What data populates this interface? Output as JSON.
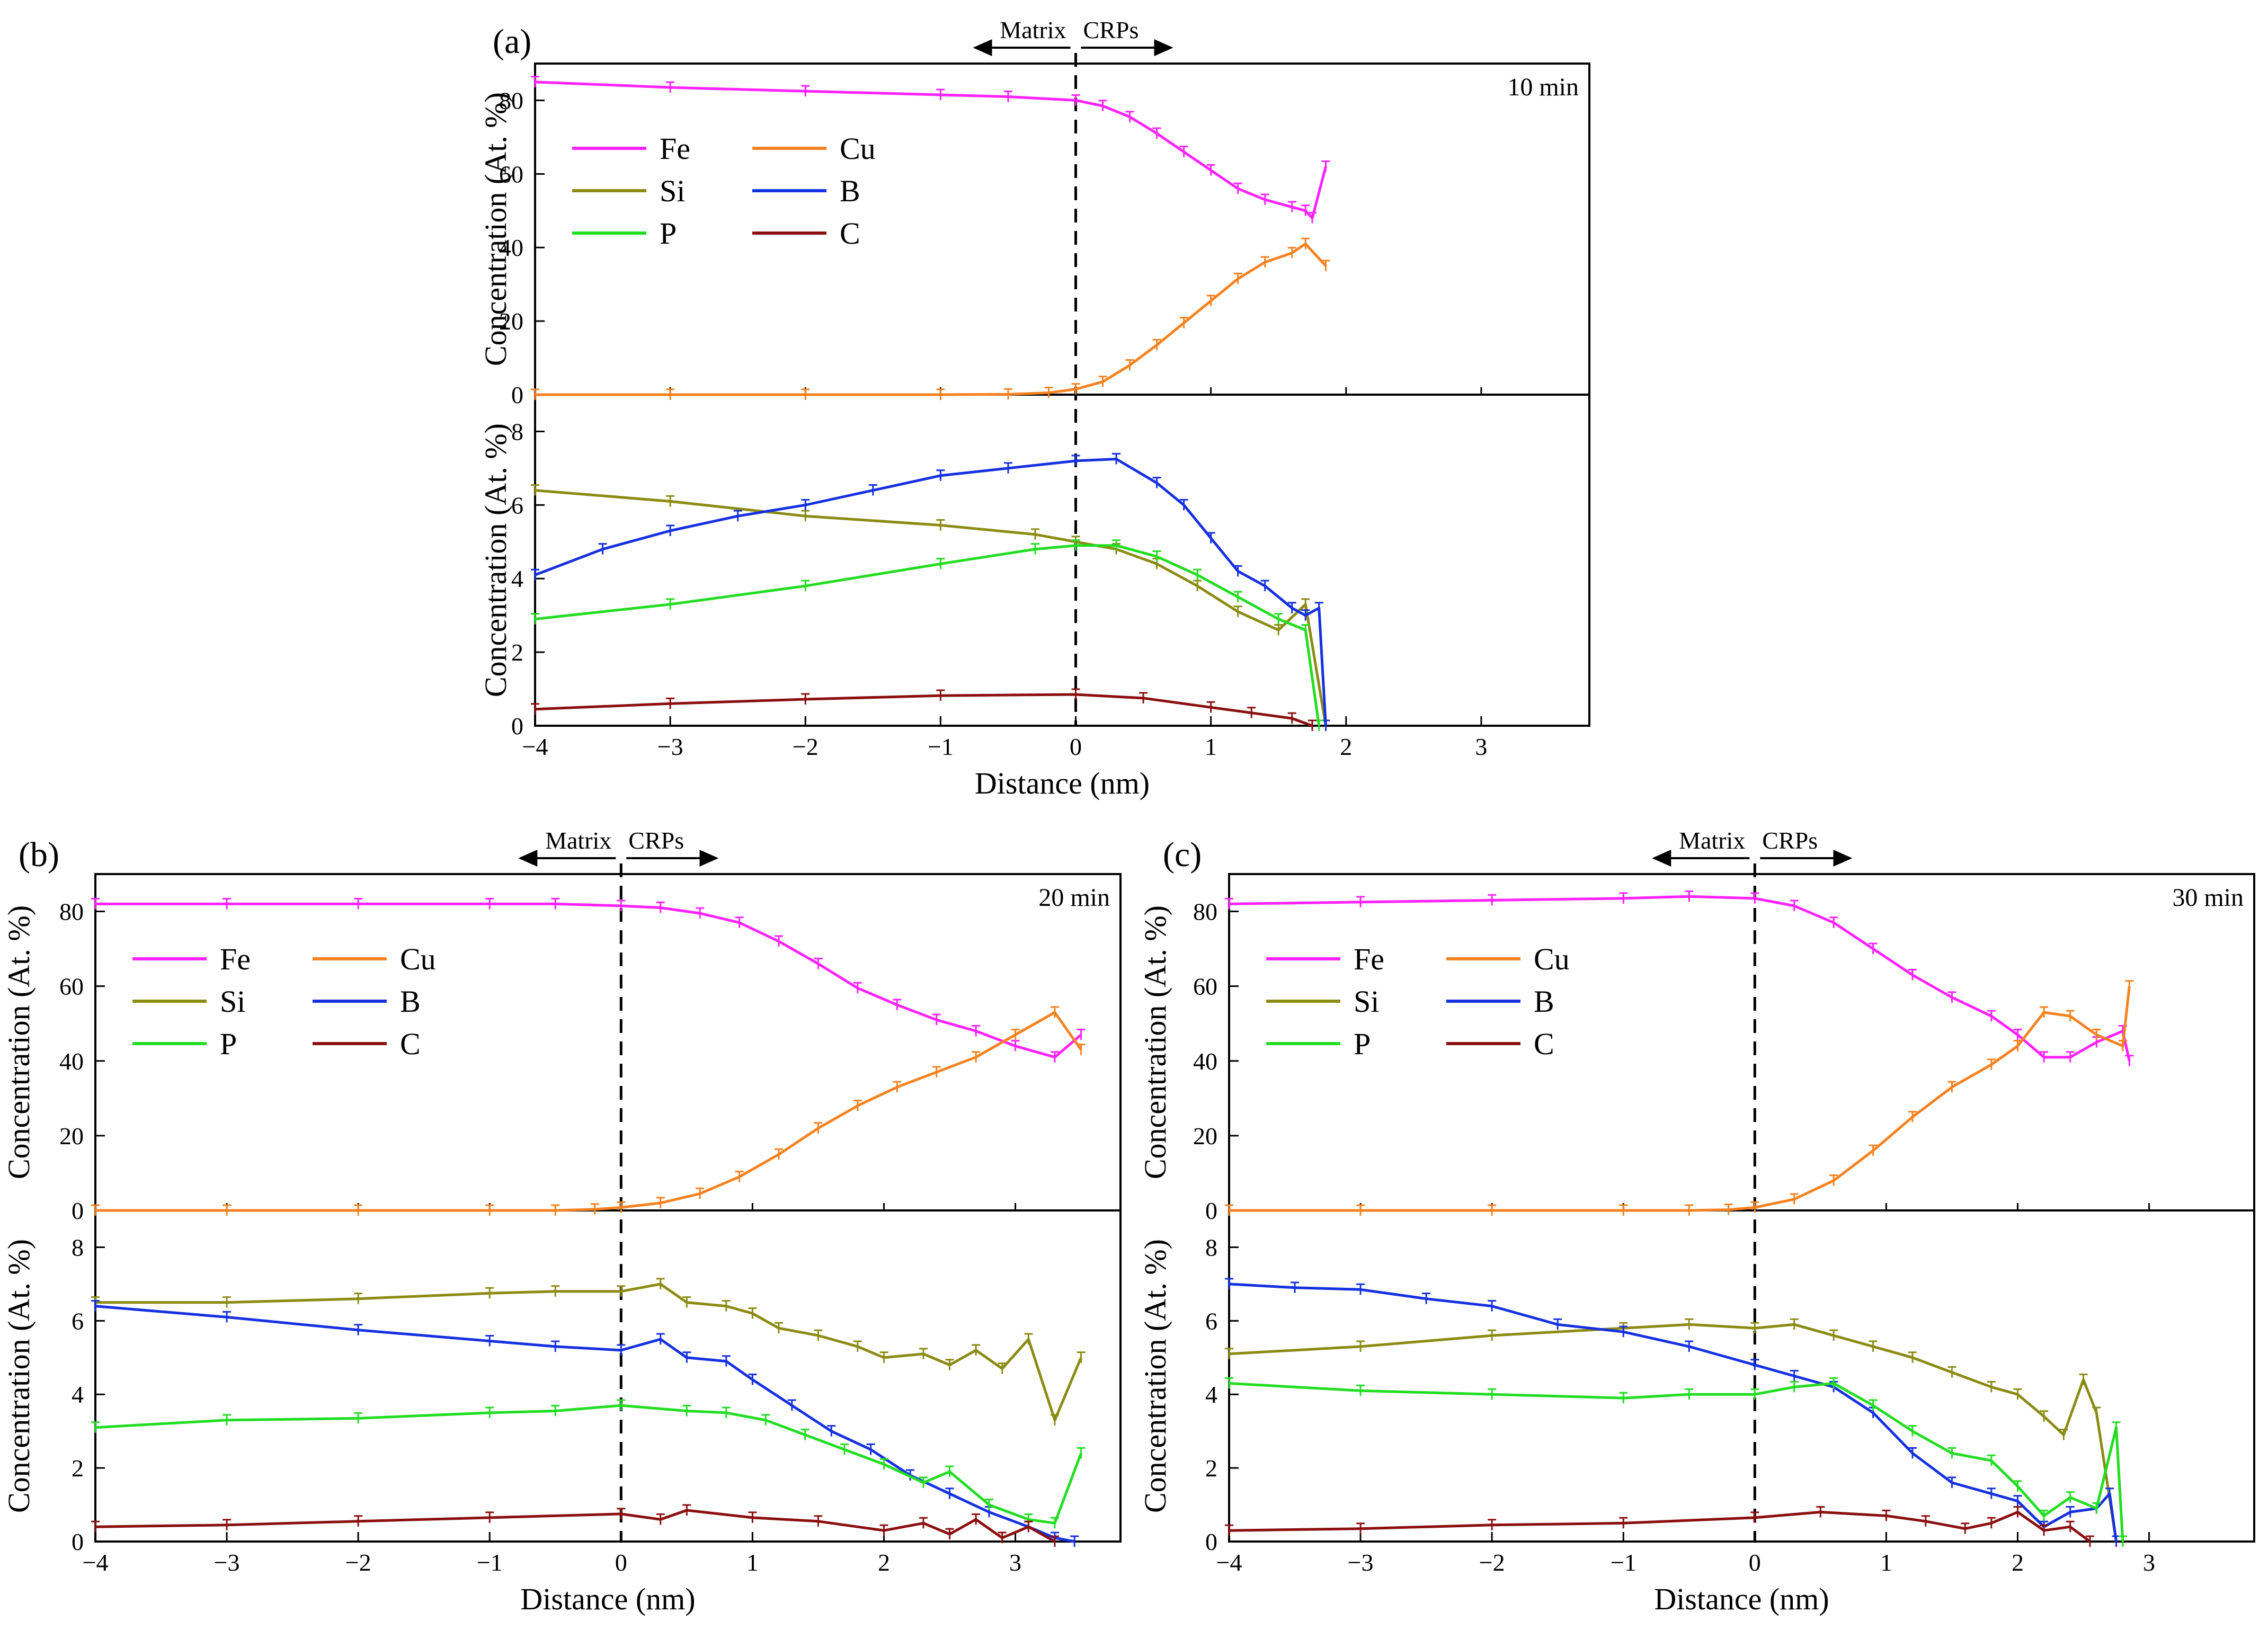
{
  "figure": {
    "colors": {
      "Fe": "#ff22ff",
      "Cu": "#f58220",
      "Si": "#8b8b14",
      "B": "#1530e0",
      "P": "#22dd22",
      "C": "#8b0f0f"
    },
    "legend_labels": [
      "Fe",
      "Cu",
      "Si",
      "B",
      "P",
      "C"
    ]
  },
  "chart_data": [
    {
      "panel_label": "(a)",
      "type": "line",
      "title": "10 min",
      "xlabel": "Distance (nm)",
      "ylabel": "Concentration (At. %)",
      "xlim": [
        -4,
        3.8
      ],
      "xticks": [
        -4,
        -3,
        -2,
        -1,
        0,
        1,
        2,
        3
      ],
      "xtick_labels": [
        "−4",
        "−3",
        "−2",
        "−1",
        "0",
        "1",
        "2",
        "3"
      ],
      "top": {
        "ylim": [
          0,
          90
        ],
        "yticks": [
          0,
          20,
          40,
          60,
          80
        ],
        "series": [
          {
            "name": "Fe",
            "x": [
              -4,
              -3,
              -2,
              -1,
              -0.5,
              0,
              0.2,
              0.4,
              0.6,
              0.8,
              1.0,
              1.2,
              1.4,
              1.6,
              1.7,
              1.75,
              1.85
            ],
            "y": [
              85,
              83.5,
              82.5,
              81.5,
              81,
              80,
              78.5,
              75.5,
              71,
              66,
              61,
              56,
              53,
              51,
              50,
              48,
              62
            ]
          },
          {
            "name": "Cu",
            "x": [
              -4,
              -3,
              -2,
              -1,
              -0.5,
              -0.2,
              0,
              0.2,
              0.4,
              0.6,
              0.8,
              1.0,
              1.2,
              1.4,
              1.6,
              1.7,
              1.85
            ],
            "y": [
              0,
              0,
              0,
              0,
              0.1,
              0.5,
              1.5,
              3.5,
              8,
              13.5,
              19.5,
              25.5,
              31.5,
              36,
              38.5,
              41,
              35
            ]
          }
        ]
      },
      "bottom": {
        "ylim": [
          0,
          9
        ],
        "yticks": [
          0,
          2,
          4,
          6,
          8
        ],
        "series": [
          {
            "name": "Si",
            "x": [
              -4,
              -3,
              -2,
              -1,
              -0.3,
              0,
              0.3,
              0.6,
              0.9,
              1.2,
              1.5,
              1.7,
              1.85
            ],
            "y": [
              6.4,
              6.1,
              5.7,
              5.45,
              5.2,
              5.0,
              4.8,
              4.4,
              3.8,
              3.1,
              2.6,
              3.3,
              0
            ]
          },
          {
            "name": "B",
            "x": [
              -4,
              -3.5,
              -3,
              -2.5,
              -2,
              -1.5,
              -1,
              -0.5,
              0,
              0.3,
              0.6,
              0.8,
              1.0,
              1.2,
              1.4,
              1.6,
              1.7,
              1.8,
              1.85
            ],
            "y": [
              4.1,
              4.8,
              5.3,
              5.7,
              6.0,
              6.4,
              6.8,
              7.0,
              7.2,
              7.25,
              6.6,
              6.0,
              5.1,
              4.2,
              3.8,
              3.2,
              3.0,
              3.2,
              0
            ]
          },
          {
            "name": "P",
            "x": [
              -4,
              -3,
              -2,
              -1,
              -0.3,
              0,
              0.3,
              0.6,
              0.9,
              1.2,
              1.5,
              1.7,
              1.8
            ],
            "y": [
              2.9,
              3.3,
              3.8,
              4.4,
              4.8,
              4.9,
              4.9,
              4.6,
              4.1,
              3.5,
              2.9,
              2.6,
              0
            ]
          },
          {
            "name": "C",
            "x": [
              -4,
              -3,
              -2,
              -1,
              0,
              0.5,
              1.0,
              1.3,
              1.6,
              1.75
            ],
            "y": [
              0.45,
              0.6,
              0.72,
              0.82,
              0.85,
              0.75,
              0.5,
              0.35,
              0.2,
              0
            ]
          }
        ]
      },
      "annotations": {
        "divider_x": 0,
        "left_label": "Matrix",
        "right_label": "CRPs"
      }
    },
    {
      "panel_label": "(b)",
      "type": "line",
      "title": "20 min",
      "xlabel": "Distance (nm)",
      "ylabel": "Concentration (At. %)",
      "xlim": [
        -4,
        3.8
      ],
      "xticks": [
        -4,
        -3,
        -2,
        -1,
        0,
        1,
        2,
        3
      ],
      "xtick_labels": [
        "−4",
        "−3",
        "−2",
        "−1",
        "0",
        "1",
        "2",
        "3"
      ],
      "top": {
        "ylim": [
          0,
          90
        ],
        "yticks": [
          0,
          20,
          40,
          60,
          80
        ],
        "series": [
          {
            "name": "Fe",
            "x": [
              -4,
              -3,
              -2,
              -1,
              -0.5,
              0,
              0.3,
              0.6,
              0.9,
              1.2,
              1.5,
              1.8,
              2.1,
              2.4,
              2.7,
              3.0,
              3.3,
              3.5
            ],
            "y": [
              82,
              82,
              82,
              82,
              82,
              81.5,
              81,
              79.5,
              77,
              72,
              66,
              59.5,
              55,
              51,
              48,
              44,
              41,
              47
            ]
          },
          {
            "name": "Cu",
            "x": [
              -4,
              -3,
              -2,
              -1,
              -0.5,
              -0.2,
              0,
              0.3,
              0.6,
              0.9,
              1.2,
              1.5,
              1.8,
              2.1,
              2.4,
              2.7,
              3.0,
              3.3,
              3.5
            ],
            "y": [
              0,
              0,
              0,
              0,
              0,
              0.3,
              0.8,
              2,
              4.5,
              9,
              15,
              22,
              28,
              33,
              37,
              41,
              47,
              53,
              43
            ]
          }
        ]
      },
      "bottom": {
        "ylim": [
          0,
          9
        ],
        "yticks": [
          0,
          2,
          4,
          6,
          8
        ],
        "series": [
          {
            "name": "Si",
            "x": [
              -4,
              -3,
              -2,
              -1,
              -0.5,
              0,
              0.3,
              0.5,
              0.8,
              1.0,
              1.2,
              1.5,
              1.8,
              2.0,
              2.3,
              2.5,
              2.7,
              2.9,
              3.1,
              3.3,
              3.5
            ],
            "y": [
              6.5,
              6.5,
              6.6,
              6.75,
              6.8,
              6.8,
              7.0,
              6.5,
              6.4,
              6.2,
              5.8,
              5.6,
              5.3,
              5.0,
              5.1,
              4.8,
              5.2,
              4.7,
              5.5,
              3.3,
              5.0
            ]
          },
          {
            "name": "B",
            "x": [
              -4,
              -3,
              -2,
              -1,
              -0.5,
              0,
              0.3,
              0.5,
              0.8,
              1.0,
              1.3,
              1.6,
              1.9,
              2.2,
              2.5,
              2.8,
              3.1,
              3.3,
              3.45
            ],
            "y": [
              6.4,
              6.1,
              5.75,
              5.45,
              5.3,
              5.2,
              5.5,
              5.0,
              4.9,
              4.4,
              3.7,
              3.0,
              2.5,
              1.8,
              1.3,
              0.8,
              0.4,
              0.1,
              0
            ]
          },
          {
            "name": "P",
            "x": [
              -4,
              -3,
              -2,
              -1,
              -0.5,
              0,
              0.5,
              0.8,
              1.1,
              1.4,
              1.7,
              2.0,
              2.3,
              2.5,
              2.8,
              3.1,
              3.3,
              3.5
            ],
            "y": [
              3.1,
              3.3,
              3.35,
              3.5,
              3.55,
              3.7,
              3.55,
              3.5,
              3.3,
              2.9,
              2.5,
              2.1,
              1.6,
              1.9,
              1.0,
              0.6,
              0.5,
              2.4
            ]
          },
          {
            "name": "C",
            "x": [
              -4,
              -3,
              -2,
              -1,
              0,
              0.3,
              0.5,
              1.0,
              1.5,
              2.0,
              2.3,
              2.5,
              2.7,
              2.9,
              3.1,
              3.3
            ],
            "y": [
              0.4,
              0.45,
              0.55,
              0.65,
              0.75,
              0.6,
              0.85,
              0.65,
              0.55,
              0.3,
              0.5,
              0.2,
              0.6,
              0.1,
              0.4,
              0
            ]
          }
        ]
      },
      "annotations": {
        "divider_x": 0,
        "left_label": "Matrix",
        "right_label": "CRPs"
      }
    },
    {
      "panel_label": "(c)",
      "type": "line",
      "title": "30 min",
      "xlabel": "Distance (nm)",
      "ylabel": "Concentration (At. %)",
      "xlim": [
        -4,
        3.8
      ],
      "xticks": [
        -4,
        -3,
        -2,
        -1,
        0,
        1,
        2,
        3
      ],
      "xtick_labels": [
        "−4",
        "−3",
        "−2",
        "−1",
        "0",
        "1",
        "2",
        "3"
      ],
      "top": {
        "ylim": [
          0,
          90
        ],
        "yticks": [
          0,
          20,
          40,
          60,
          80
        ],
        "series": [
          {
            "name": "Fe",
            "x": [
              -4,
              -3,
              -2,
              -1,
              -0.5,
              0,
              0.3,
              0.6,
              0.9,
              1.2,
              1.5,
              1.8,
              2.0,
              2.2,
              2.4,
              2.6,
              2.8,
              2.85
            ],
            "y": [
              82,
              82.5,
              83,
              83.5,
              84,
              83.5,
              81.5,
              77,
              70,
              63,
              57,
              52,
              47,
              41,
              41,
              45,
              48,
              40
            ]
          },
          {
            "name": "Cu",
            "x": [
              -4,
              -3,
              -2,
              -1,
              -0.5,
              -0.2,
              0,
              0.3,
              0.6,
              0.9,
              1.2,
              1.5,
              1.8,
              2.0,
              2.2,
              2.4,
              2.6,
              2.8,
              2.85
            ],
            "y": [
              0,
              0,
              0,
              0,
              0,
              0.2,
              0.8,
              3,
              8,
              16,
              25,
              33,
              39,
              44,
              53,
              52,
              47,
              44,
              60
            ]
          }
        ]
      },
      "bottom": {
        "ylim": [
          0,
          9
        ],
        "yticks": [
          0,
          2,
          4,
          6,
          8
        ],
        "series": [
          {
            "name": "Si",
            "x": [
              -4,
              -3,
              -2,
              -1,
              -0.5,
              0,
              0.3,
              0.6,
              0.9,
              1.2,
              1.5,
              1.8,
              2.0,
              2.2,
              2.35,
              2.5,
              2.6,
              2.75
            ],
            "y": [
              5.1,
              5.3,
              5.6,
              5.8,
              5.9,
              5.8,
              5.9,
              5.6,
              5.3,
              5.0,
              4.6,
              4.2,
              4.0,
              3.4,
              2.9,
              4.4,
              3.5,
              0
            ]
          },
          {
            "name": "B",
            "x": [
              -4,
              -3.5,
              -3,
              -2.5,
              -2,
              -1.5,
              -1,
              -0.5,
              0,
              0.3,
              0.6,
              0.9,
              1.2,
              1.5,
              1.8,
              2.0,
              2.2,
              2.4,
              2.6,
              2.7,
              2.75
            ],
            "y": [
              7.0,
              6.9,
              6.85,
              6.6,
              6.4,
              5.9,
              5.7,
              5.3,
              4.8,
              4.5,
              4.2,
              3.5,
              2.4,
              1.6,
              1.3,
              1.1,
              0.4,
              0.8,
              0.9,
              1.3,
              0
            ]
          },
          {
            "name": "P",
            "x": [
              -4,
              -3,
              -2,
              -1,
              -0.5,
              0,
              0.3,
              0.6,
              0.9,
              1.2,
              1.5,
              1.8,
              2.0,
              2.2,
              2.4,
              2.6,
              2.75,
              2.8
            ],
            "y": [
              4.3,
              4.1,
              4.0,
              3.9,
              4.0,
              4.0,
              4.2,
              4.3,
              3.7,
              3.0,
              2.4,
              2.2,
              1.5,
              0.7,
              1.2,
              0.9,
              3.1,
              0
            ]
          },
          {
            "name": "C",
            "x": [
              -4,
              -3,
              -2,
              -1,
              0,
              0.5,
              1.0,
              1.3,
              1.6,
              1.8,
              2.0,
              2.2,
              2.4,
              2.55
            ],
            "y": [
              0.3,
              0.35,
              0.45,
              0.5,
              0.65,
              0.8,
              0.7,
              0.55,
              0.35,
              0.5,
              0.8,
              0.3,
              0.4,
              0
            ]
          }
        ]
      },
      "annotations": {
        "divider_x": 0,
        "left_label": "Matrix",
        "right_label": "CRPs"
      }
    }
  ]
}
